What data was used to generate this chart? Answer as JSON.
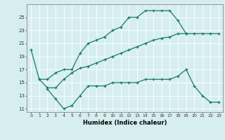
{
  "title": "",
  "xlabel": "Humidex (Indice chaleur)",
  "background_color": "#d6eef0",
  "grid_color": "#b0d0d8",
  "line_color": "#1a7a6e",
  "line1_x": [
    0,
    1,
    2,
    3,
    4,
    5,
    6,
    7,
    8,
    9,
    10,
    11,
    12,
    13,
    14,
    15,
    16,
    17,
    18,
    19
  ],
  "line1_y": [
    20.0,
    15.5,
    15.5,
    16.5,
    17.0,
    17.0,
    19.5,
    21.0,
    21.5,
    22.0,
    23.0,
    23.5,
    25.0,
    25.0,
    26.0,
    26.0,
    26.0,
    26.0,
    24.5,
    22.5
  ],
  "line2_x": [
    2,
    3,
    4,
    5,
    6,
    7,
    8,
    9,
    10,
    11,
    12,
    13,
    14,
    15,
    16,
    17,
    18,
    19,
    20,
    21,
    22,
    23
  ],
  "line2_y": [
    14.0,
    12.5,
    11.0,
    11.5,
    13.0,
    14.5,
    14.5,
    14.5,
    15.0,
    15.0,
    15.0,
    15.0,
    15.5,
    15.5,
    15.5,
    15.5,
    16.0,
    17.0,
    14.5,
    13.0,
    12.0,
    12.0
  ],
  "line3_x": [
    1,
    2,
    3,
    4,
    5,
    6,
    7,
    8,
    9,
    10,
    11,
    12,
    13,
    14,
    15,
    16,
    17,
    18,
    19,
    20,
    21,
    22,
    23
  ],
  "line3_y": [
    15.5,
    14.2,
    14.2,
    15.5,
    16.5,
    17.2,
    17.5,
    18.0,
    18.5,
    19.0,
    19.5,
    20.0,
    20.5,
    21.0,
    21.5,
    21.8,
    22.0,
    22.5,
    22.5,
    22.5,
    22.5,
    22.5,
    22.5
  ],
  "xlim": [
    -0.5,
    23.5
  ],
  "ylim": [
    10.5,
    27.0
  ],
  "yticks": [
    11,
    13,
    15,
    17,
    19,
    21,
    23,
    25
  ],
  "xticks": [
    0,
    1,
    2,
    3,
    4,
    5,
    6,
    7,
    8,
    9,
    10,
    11,
    12,
    13,
    14,
    15,
    16,
    17,
    18,
    19,
    20,
    21,
    22,
    23
  ]
}
